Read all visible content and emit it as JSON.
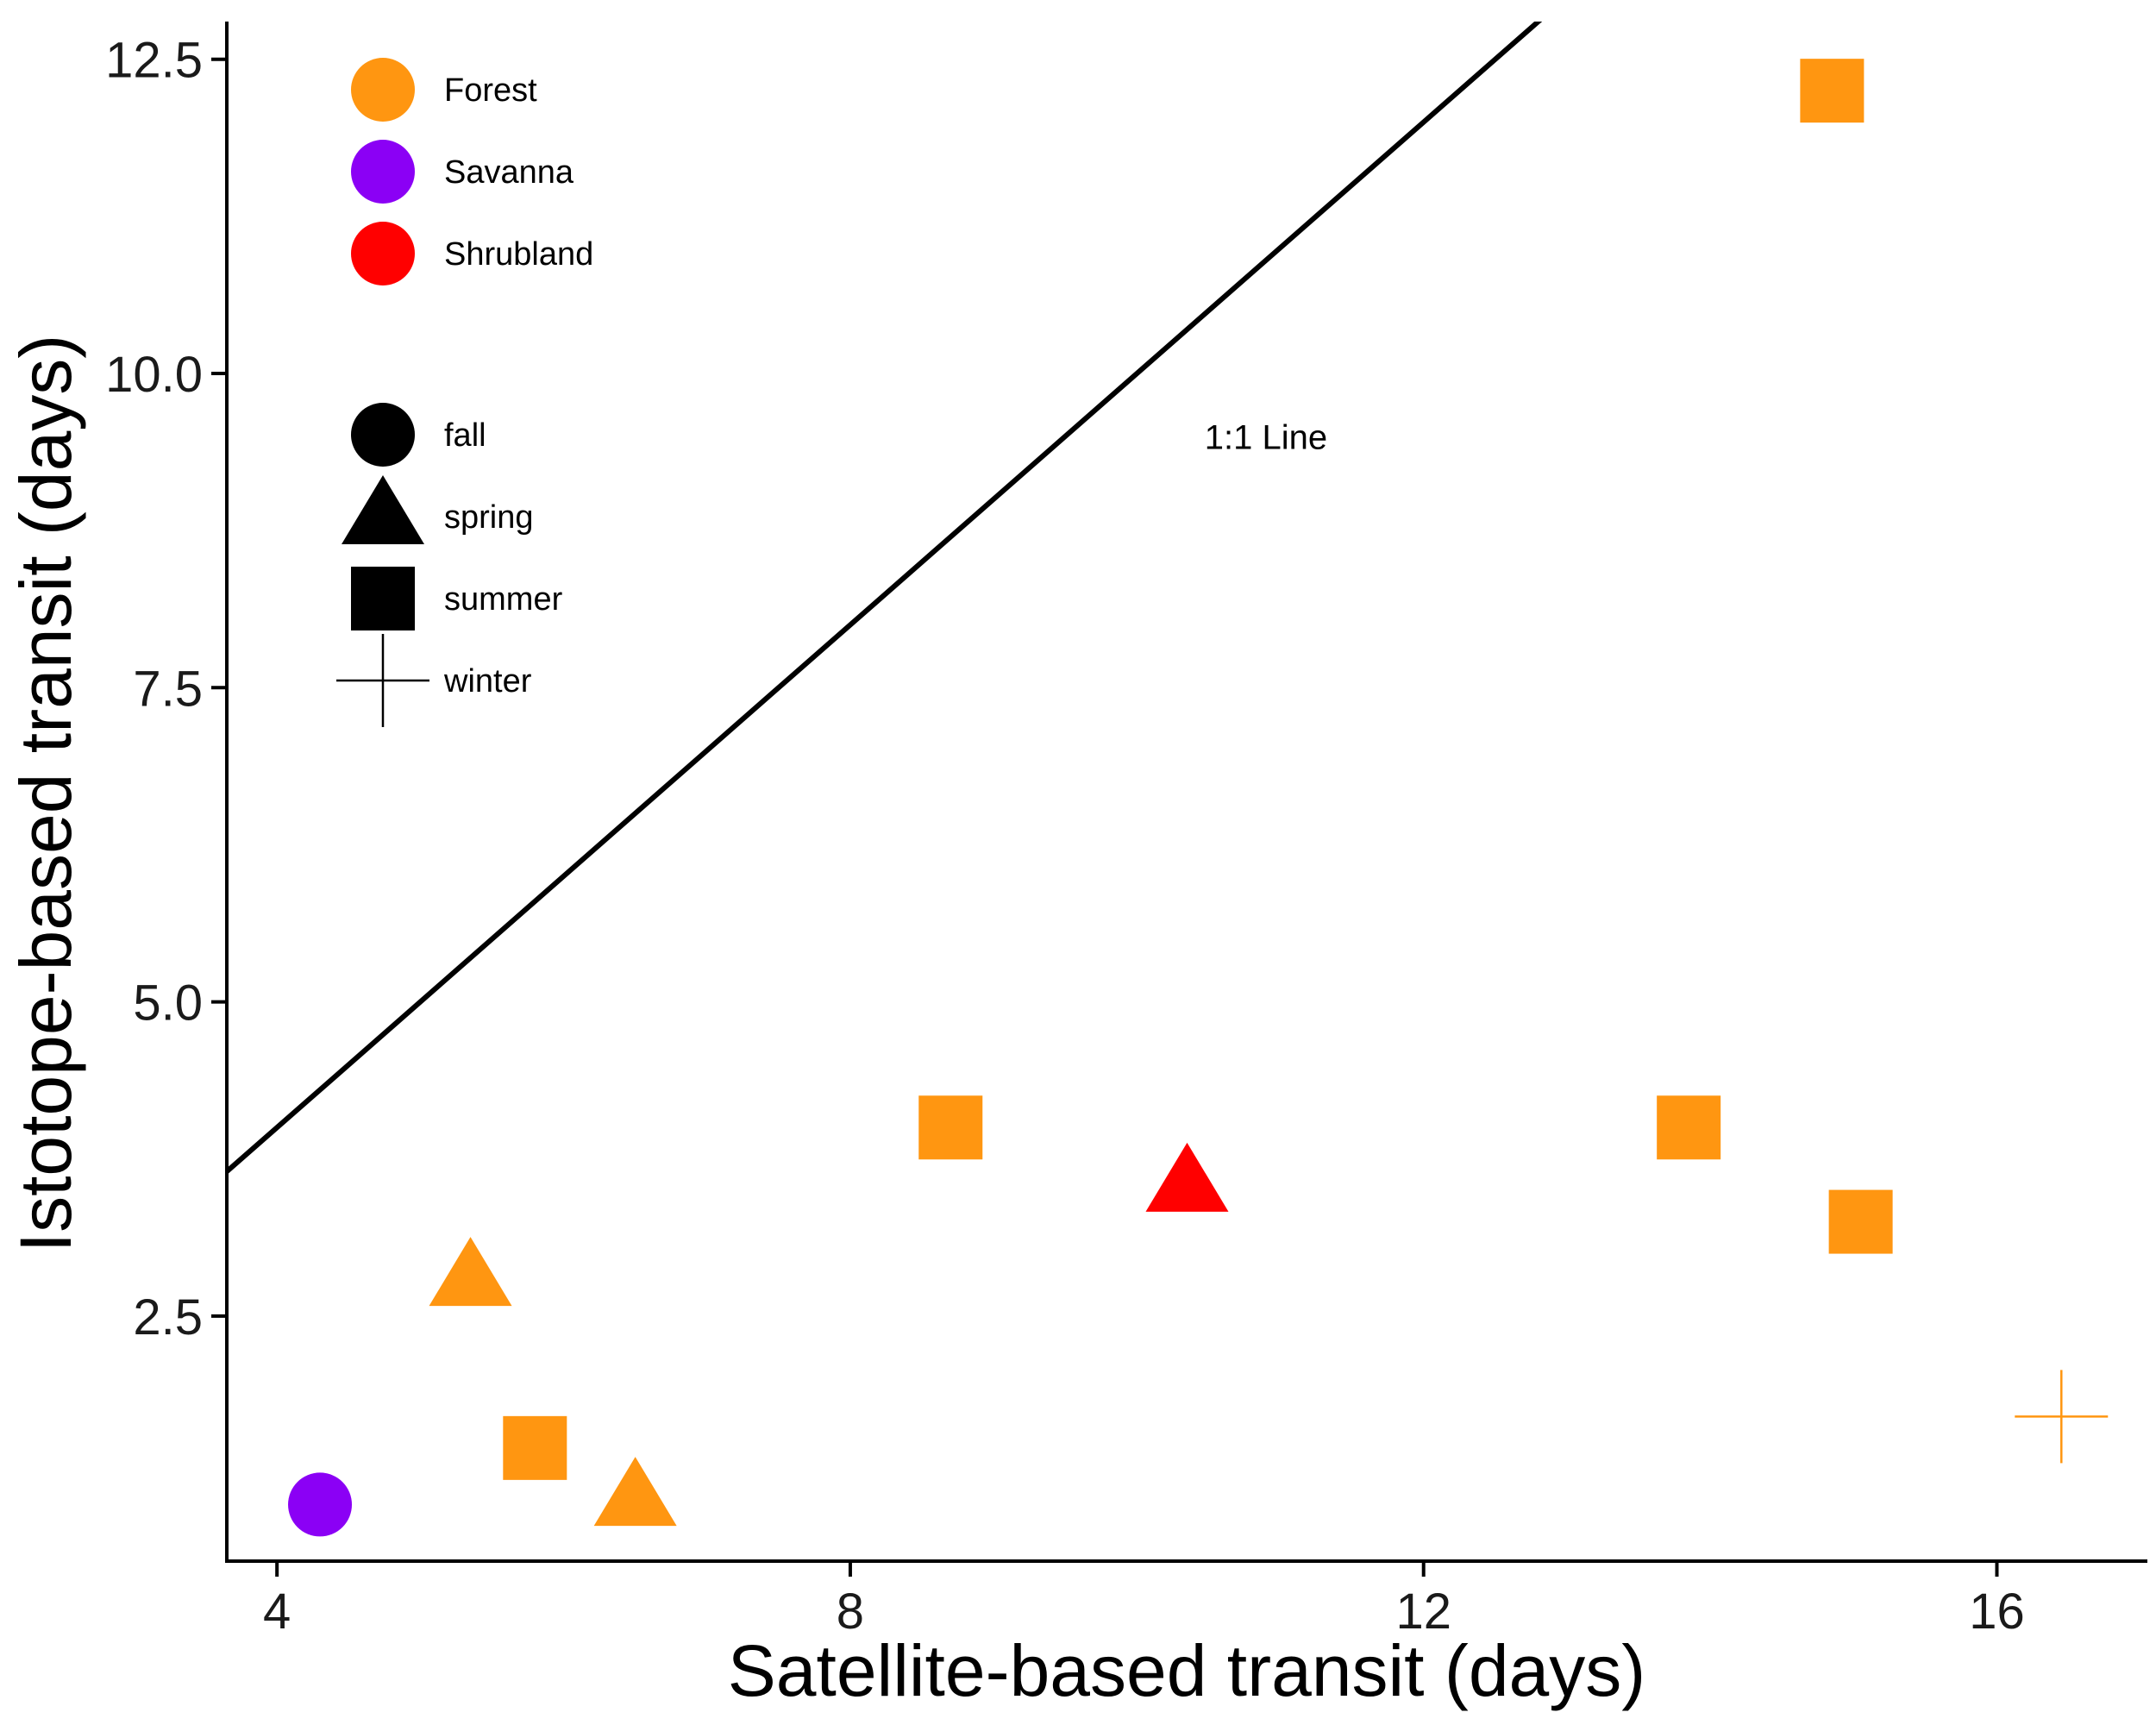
{
  "chart_data": {
    "type": "scatter",
    "title": "",
    "xlabel": "Satellite-based transit (days)",
    "ylabel": "Istotope-based transit (days)",
    "xlim": [
      3.65,
      17.05
    ],
    "ylim": [
      0.55,
      12.8
    ],
    "xticks": [
      4,
      8,
      12,
      16
    ],
    "xtick_labels": [
      "4",
      "8",
      "12",
      "16"
    ],
    "yticks": [
      2.5,
      5.0,
      7.5,
      10.0,
      12.5
    ],
    "ytick_labels": [
      "2.5",
      "5.0",
      "7.5",
      "10.0",
      "12.5"
    ],
    "grid": false,
    "reference_line": {
      "slope": 1,
      "intercept": 0,
      "label": "1:1 Line",
      "label_x": 10.9,
      "label_y": 9.4
    },
    "legend_position": "top-left",
    "color_legend": [
      {
        "label": "Forest",
        "color": "#FF9611"
      },
      {
        "label": "Savanna",
        "color": "#8B00F5"
      },
      {
        "label": "Shrubland",
        "color": "#FF0000"
      }
    ],
    "shape_legend": [
      {
        "label": "fall",
        "shape": "circle"
      },
      {
        "label": "spring",
        "shape": "triangle"
      },
      {
        "label": "summer",
        "shape": "square"
      },
      {
        "label": "winter",
        "shape": "plus"
      }
    ],
    "points": [
      {
        "x": 4.3,
        "y": 1.0,
        "habitat": "Savanna",
        "season": "fall"
      },
      {
        "x": 5.35,
        "y": 2.8,
        "habitat": "Forest",
        "season": "spring"
      },
      {
        "x": 5.8,
        "y": 1.45,
        "habitat": "Forest",
        "season": "summer"
      },
      {
        "x": 6.5,
        "y": 1.05,
        "habitat": "Forest",
        "season": "spring"
      },
      {
        "x": 8.7,
        "y": 4.0,
        "habitat": "Forest",
        "season": "summer"
      },
      {
        "x": 10.35,
        "y": 3.55,
        "habitat": "Shrubland",
        "season": "spring"
      },
      {
        "x": 13.85,
        "y": 4.0,
        "habitat": "Forest",
        "season": "summer"
      },
      {
        "x": 14.85,
        "y": 12.25,
        "habitat": "Forest",
        "season": "summer"
      },
      {
        "x": 15.05,
        "y": 3.25,
        "habitat": "Forest",
        "season": "summer"
      },
      {
        "x": 16.45,
        "y": 1.7,
        "habitat": "Forest",
        "season": "winter"
      }
    ]
  }
}
